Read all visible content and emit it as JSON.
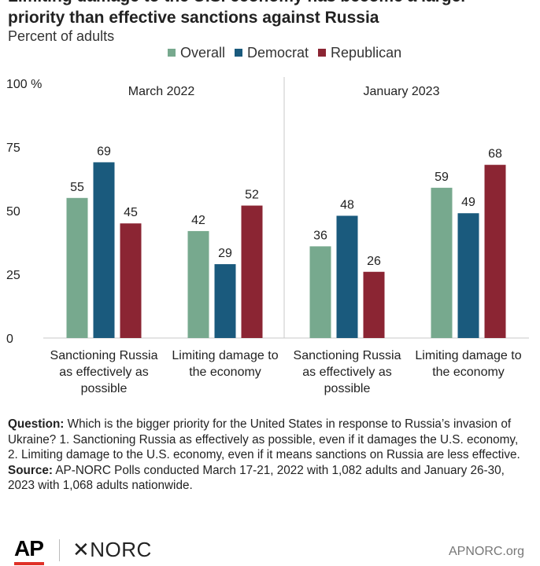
{
  "title": "Limiting damage to the U.S. economy has become a larger priority than effective sanctions against Russia",
  "subtitle": "Percent of adults",
  "colors": {
    "overall": "#77a98e",
    "democrat": "#1a5a7d",
    "republican": "#8b2533",
    "axis": "#c8c8c8"
  },
  "chart_data": {
    "type": "bar",
    "ylim": [
      0,
      100
    ],
    "yticks": [
      "0",
      "25",
      "50",
      "75",
      "100 %"
    ],
    "ytick_values": [
      0,
      25,
      50,
      75,
      100
    ],
    "legend": [
      {
        "name": "Overall",
        "color_key": "overall"
      },
      {
        "name": "Democrat",
        "color_key": "democrat"
      },
      {
        "name": "Republican",
        "color_key": "republican"
      }
    ],
    "panels": [
      {
        "label": "March 2022",
        "categories": [
          {
            "label_lines": [
              "Sanctioning Russia",
              "as effectively as",
              "possible"
            ],
            "values": [
              55,
              69,
              45
            ]
          },
          {
            "label_lines": [
              "Limiting damage to",
              "the economy"
            ],
            "values": [
              42,
              29,
              52
            ]
          }
        ]
      },
      {
        "label": "January 2023",
        "categories": [
          {
            "label_lines": [
              "Sanctioning Russia",
              "as effectively as",
              "possible"
            ],
            "values": [
              36,
              48,
              26
            ]
          },
          {
            "label_lines": [
              "Limiting damage to",
              "the economy"
            ],
            "values": [
              59,
              49,
              68
            ]
          }
        ]
      }
    ]
  },
  "notes": {
    "question_label": "Question:",
    "question_text": " Which is the bigger priority for the United States in response to Russia’s invasion of Ukraine? 1. Sanctioning Russia as effectively as possible, even if it damages the U.S. economy, 2. Limiting damage to the U.S. economy, even if it means sanctions on Russia are less effective.",
    "source_label": "Source:",
    "source_text": " AP-NORC Polls conducted March 17-21, 2022 with 1,082 adults and January 26-30, 2023 with 1,068 adults nationwide."
  },
  "footer": {
    "ap_logo": "AP",
    "norc_logo": "✕NORC",
    "site": "APNORC.org"
  }
}
